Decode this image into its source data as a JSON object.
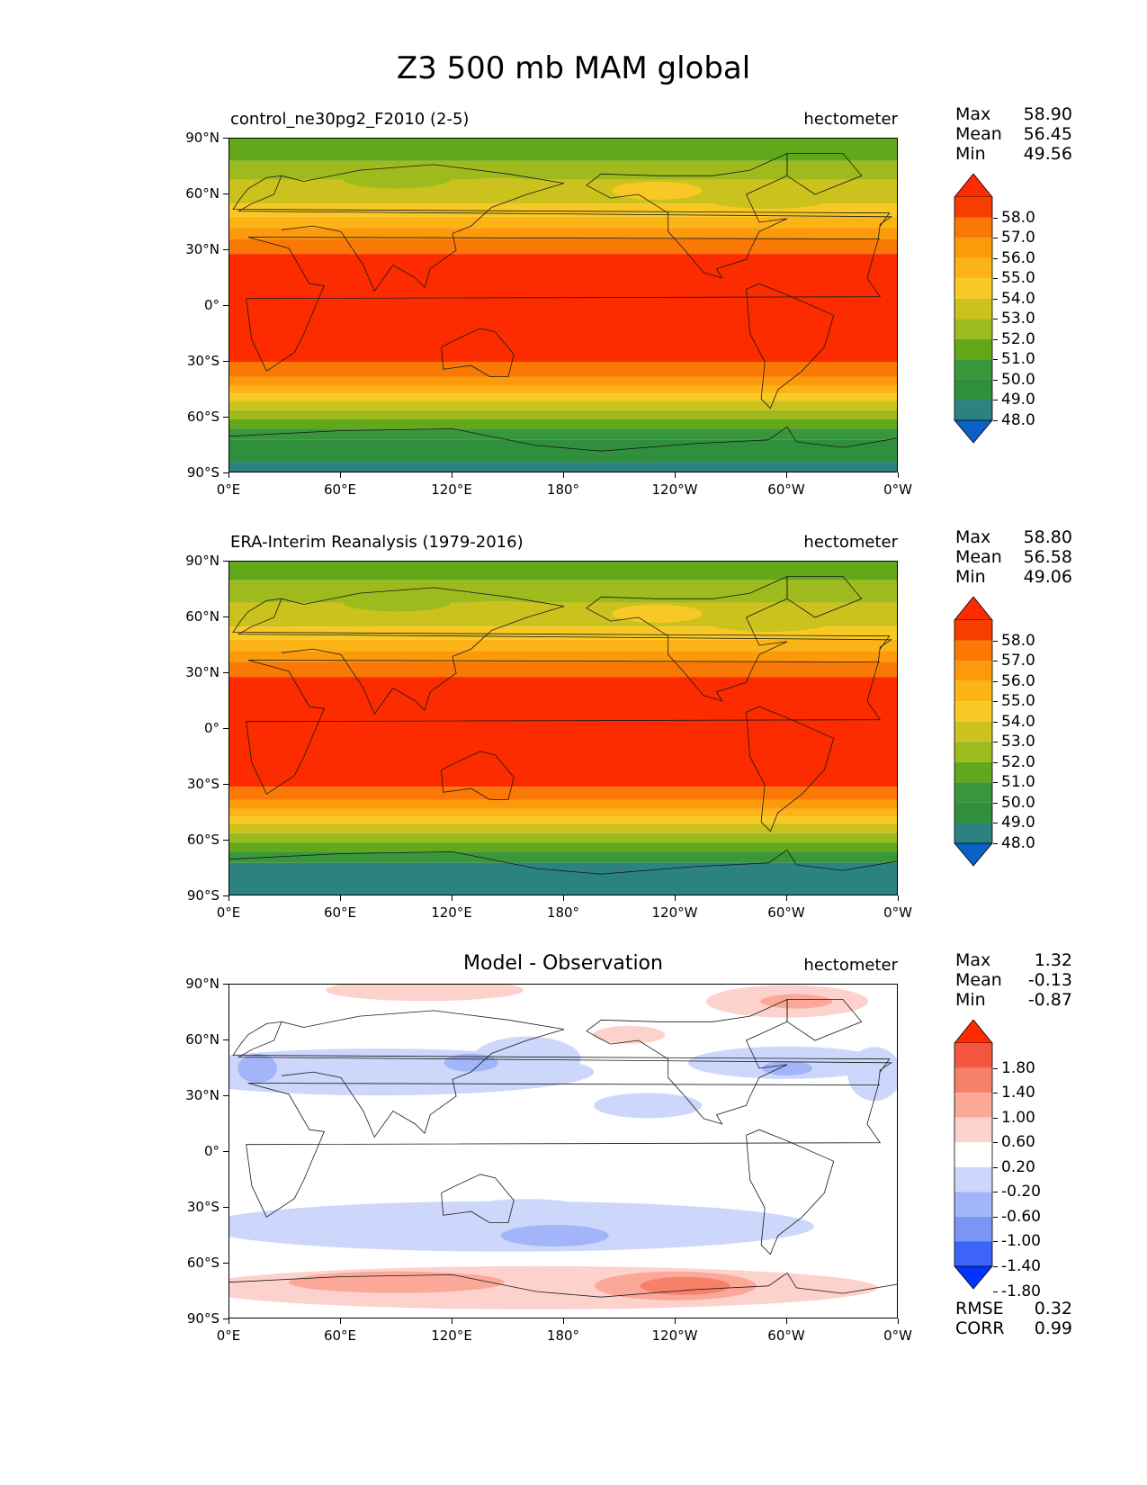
{
  "title": "Z3 500 mb MAM global",
  "units": "hectometer",
  "axes": {
    "lat_ticks": [
      "90°N",
      "60°N",
      "30°N",
      "0°",
      "30°S",
      "60°S",
      "90°S"
    ],
    "lon_ticks": [
      "0°E",
      "60°E",
      "120°E",
      "180°",
      "120°W",
      "60°W",
      "0°W"
    ]
  },
  "colors": {
    "abs_levels": [
      "#0033ff",
      "#0a62c6",
      "#2c8181",
      "#2f8f3c",
      "#3a963a",
      "#63a81a",
      "#9dbb1c",
      "#ccc21e",
      "#f8c924",
      "#fcb316",
      "#fc9a0c",
      "#fa7906",
      "#f83d00",
      "#fc2b00"
    ],
    "diff_levels": [
      "#0033ff",
      "#3d64fa",
      "#7b95f5",
      "#a2b5f8",
      "#cdd7fb",
      "#ffffff",
      "#fdd2cc",
      "#fba899",
      "#f78069",
      "#f4573f",
      "#fc2b00"
    ]
  },
  "panels": [
    {
      "id": "test",
      "left_title": "control_ne30pg2_F2010 (2-5)",
      "right_title": "hectometer",
      "stats": {
        "max_label": "Max",
        "max": "58.90",
        "mean_label": "Mean",
        "mean": "56.45",
        "min_label": "Min",
        "min": "49.56"
      },
      "colorbar_labels": [
        "58.0",
        "57.0",
        "56.0",
        "55.0",
        "54.0",
        "53.0",
        "52.0",
        "51.0",
        "50.0",
        "49.0",
        "48.0"
      ],
      "bands_lat": [
        [
          90,
          78,
          5
        ],
        [
          78,
          68,
          6
        ],
        [
          68,
          55,
          7
        ],
        [
          55,
          48,
          8
        ],
        [
          48,
          42,
          9
        ],
        [
          42,
          36,
          10
        ],
        [
          36,
          28,
          11
        ],
        [
          28,
          -30,
          13
        ],
        [
          -30,
          -38,
          11
        ],
        [
          -38,
          -43,
          10
        ],
        [
          -43,
          -47,
          9
        ],
        [
          -47,
          -51,
          8
        ],
        [
          -51,
          -56,
          7
        ],
        [
          -56,
          -61,
          6
        ],
        [
          -61,
          -66,
          5
        ],
        [
          -66,
          -72,
          4
        ],
        [
          -72,
          -84,
          3
        ],
        [
          -84,
          -90,
          2
        ]
      ]
    },
    {
      "id": "reference",
      "left_title": "ERA-Interim Reanalysis (1979-2016)",
      "right_title": "hectometer",
      "stats": {
        "max_label": "Max",
        "max": "58.80",
        "mean_label": "Mean",
        "mean": "56.58",
        "min_label": "Min",
        "min": "49.06"
      },
      "colorbar_labels": [
        "58.0",
        "57.0",
        "56.0",
        "55.0",
        "54.0",
        "53.0",
        "52.0",
        "51.0",
        "50.0",
        "49.0",
        "48.0"
      ],
      "bands_lat": [
        [
          90,
          80,
          5
        ],
        [
          80,
          68,
          6
        ],
        [
          68,
          55,
          7
        ],
        [
          55,
          48,
          8
        ],
        [
          48,
          42,
          9
        ],
        [
          42,
          36,
          10
        ],
        [
          36,
          28,
          11
        ],
        [
          28,
          -31,
          13
        ],
        [
          -31,
          -38,
          11
        ],
        [
          -38,
          -43,
          10
        ],
        [
          -43,
          -47,
          9
        ],
        [
          -47,
          -51,
          8
        ],
        [
          -51,
          -56,
          7
        ],
        [
          -56,
          -61,
          6
        ],
        [
          -61,
          -66,
          5
        ],
        [
          -66,
          -72,
          4
        ],
        [
          -72,
          -90,
          2
        ]
      ]
    },
    {
      "id": "diff",
      "center_title": "Model - Observation",
      "right_title": "hectometer",
      "stats": {
        "max_label": "Max",
        "max": "1.32",
        "mean_label": "Mean",
        "mean": "-0.13",
        "min_label": "Min",
        "min": "-0.87"
      },
      "colorbar_labels": [
        "1.80",
        "1.40",
        "1.00",
        "0.60",
        "0.20",
        "-0.20",
        "-0.60",
        "-1.00",
        "-1.40",
        "-1.80"
      ],
      "extra_stats": {
        "rmse_label": "RMSE",
        "rmse": "0.32",
        "corr_label": "CORR",
        "corr": "0.99"
      }
    }
  ]
}
